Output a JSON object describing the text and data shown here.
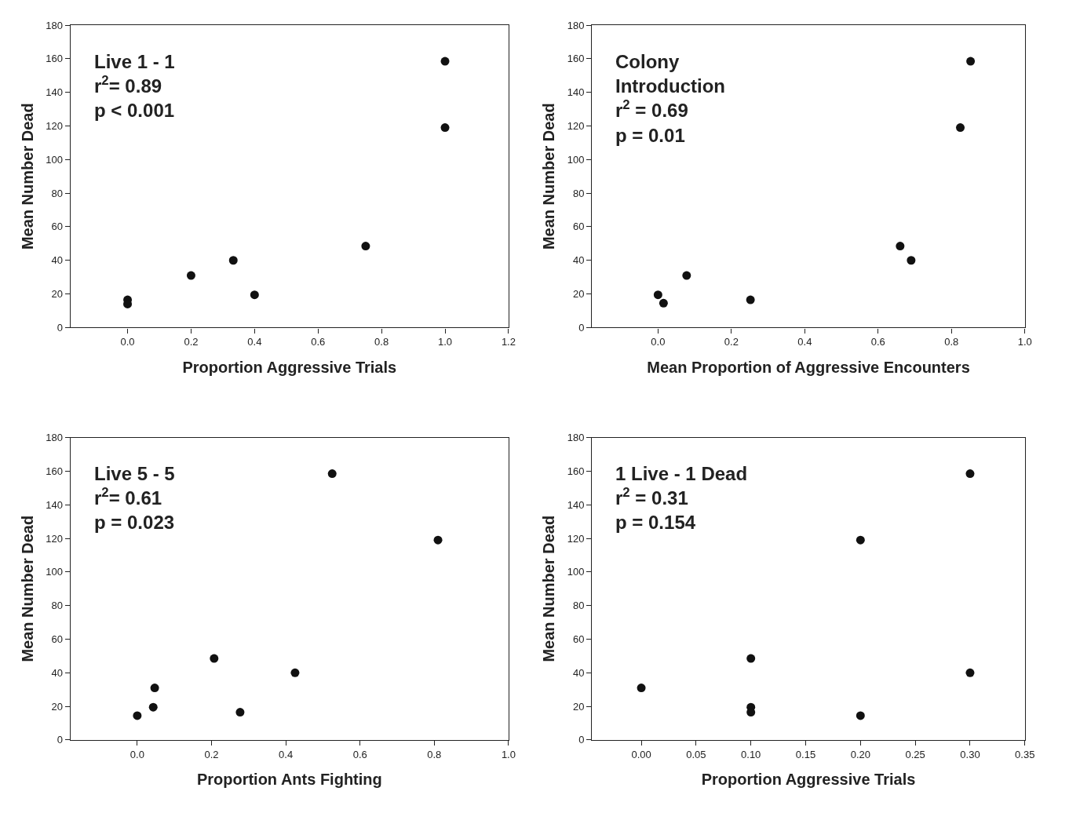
{
  "chart_data": [
    {
      "type": "scatter",
      "x": [
        0,
        0,
        0.2,
        0.333,
        0.4,
        0.75,
        1,
        1
      ],
      "values": [
        16.5,
        14,
        31,
        40,
        19.5,
        48.5,
        158.5,
        119
      ],
      "color": "#111111",
      "marker": "circle",
      "xlabel": "Proportion Aggressive Trials",
      "ylabel": "Mean Number Dead",
      "xlim": [
        -0.18,
        1.2
      ],
      "xticks": [
        {
          "value": 0,
          "label": "0.0"
        },
        0.2,
        0.4,
        0.6,
        0.8,
        {
          "value": 1,
          "label": "1.0"
        },
        1.2
      ],
      "ylim": [
        0,
        180
      ],
      "yticks": [
        0,
        20,
        40,
        60,
        80,
        100,
        120,
        140,
        160,
        180
      ],
      "annotations": [
        "Live 1 - 1\nr$^{2}$= 0.89\np < 0.001"
      ]
    },
    {
      "type": "scatter",
      "x": [
        0,
        0.015,
        0.078,
        0.252,
        0.66,
        0.69,
        0.824,
        0.852
      ],
      "values": [
        19.5,
        14.5,
        31,
        16.5,
        48.5,
        40,
        119,
        158.5
      ],
      "color": "#111111",
      "marker": "circle",
      "xlabel": "Mean Proportion of Aggressive Encounters",
      "ylabel": "Mean Number Dead",
      "xlim": [
        -0.18,
        1.0
      ],
      "xticks": [
        {
          "value": 0,
          "label": "0.0"
        },
        0.2,
        0.4,
        0.6,
        0.8,
        {
          "value": 1,
          "label": "1.0"
        }
      ],
      "ylim": [
        0,
        180
      ],
      "yticks": [
        0,
        20,
        40,
        60,
        80,
        100,
        120,
        140,
        160,
        180
      ],
      "annotations": [
        "Colony\nIntroduction\nr$^{2}$ = 0.69\np = 0.01"
      ]
    },
    {
      "type": "scatter",
      "x": [
        0,
        0.043,
        0.047,
        0.207,
        0.277,
        0.425,
        0.525,
        0.81
      ],
      "values": [
        14.5,
        19.5,
        31,
        48.5,
        16.5,
        40,
        158.5,
        119
      ],
      "color": "#111111",
      "marker": "circle",
      "xlabel": "Proportion Ants Fighting",
      "ylabel": "Mean Number Dead",
      "xlim": [
        -0.18,
        1.0
      ],
      "xticks": [
        {
          "value": 0,
          "label": "0.0"
        },
        0.2,
        0.4,
        0.6,
        0.8,
        {
          "value": 1,
          "label": "1.0"
        }
      ],
      "ylim": [
        0,
        180
      ],
      "yticks": [
        0,
        20,
        40,
        60,
        80,
        100,
        120,
        140,
        160,
        180
      ],
      "annotations": [
        "Live 5 - 5\nr$^{2}$= 0.61\np = 0.023"
      ]
    },
    {
      "type": "scatter",
      "x": [
        0,
        0.1,
        0.1,
        0.1,
        0.2,
        0.2,
        0.3,
        0.3
      ],
      "values": [
        31,
        48.5,
        19.5,
        16.5,
        119,
        14.5,
        158.5,
        40
      ],
      "color": "#111111",
      "marker": "circle",
      "xlabel": "Proportion Aggressive Trials",
      "ylabel": "Mean Number Dead",
      "xlim": [
        -0.045,
        0.35
      ],
      "xticks": [
        {
          "value": 0,
          "label": "0.00"
        },
        0.05,
        {
          "value": 0.1,
          "label": "0.10"
        },
        0.15,
        {
          "value": 0.2,
          "label": "0.20"
        },
        0.25,
        {
          "value": 0.3,
          "label": "0.30"
        },
        0.35
      ],
      "ylim": [
        0,
        180
      ],
      "yticks": [
        0,
        20,
        40,
        60,
        80,
        100,
        120,
        140,
        160,
        180
      ],
      "annotations": [
        "1 Live - 1 Dead\nr$^{2}$ = 0.31\np = 0.154"
      ]
    }
  ]
}
